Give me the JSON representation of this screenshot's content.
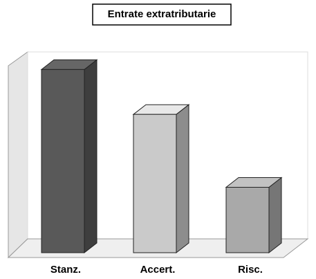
{
  "chart_data": {
    "type": "bar3d",
    "title": "Entrate extratributarie",
    "categories": [
      "Stanz.",
      "Accert.",
      "Risc."
    ],
    "values": [
      98,
      74,
      35
    ],
    "colors": [
      "#595959",
      "#cacaca",
      "#a9a9a9"
    ],
    "ylim": [
      0,
      100
    ]
  }
}
